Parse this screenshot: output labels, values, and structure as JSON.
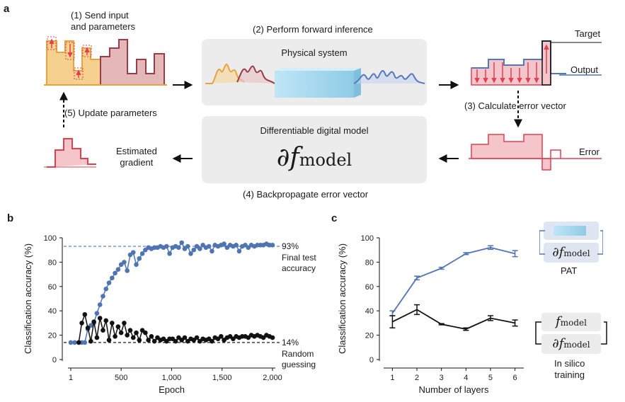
{
  "panel_a": {
    "label": "a",
    "step1": [
      "(1) Send input",
      "and parameters"
    ],
    "step2": "(2) Perform forward inference",
    "step3": "(3) Calculate error vector",
    "step4": "(4) Backpropagate error vector",
    "step5": "(5) Update parameters",
    "physical_system_title": "Physical system",
    "digital_model_title": "Differentiable digital model",
    "digital_model_symbol": "∂f",
    "digital_model_subscript": "model",
    "target_label": "Target",
    "output_label": "Output",
    "error_label": "Error",
    "estimated_gradient": [
      "Estimated",
      "gradient"
    ],
    "colors": {
      "input_orange": "#f0b65a",
      "param_red": "#a8505a",
      "target_red": "#e04050",
      "output_blue": "#5577bb",
      "box_gray": "#ececec",
      "beam_cyan": "#9fd6ee"
    }
  },
  "panel_b": {
    "label": "b",
    "annotations": {
      "final_pct": "93%",
      "final_text": [
        "Final test",
        "accuracy"
      ],
      "random_pct": "14%",
      "random_text": [
        "Random",
        "guessing"
      ]
    }
  },
  "panel_c": {
    "label": "c",
    "pat_label": "PAT",
    "insilico_label": [
      "In silico",
      "training"
    ],
    "fmodel_symbol": "f",
    "dfmodel_symbol": "∂f",
    "model_sub": "model"
  },
  "chart_data": [
    {
      "type": "scatter",
      "xlabel": "Epoch",
      "ylabel": "Classification accuracy (%)",
      "xlim": [
        1,
        2000
      ],
      "ylim": [
        0,
        100
      ],
      "xticks": [
        1,
        500,
        1000,
        1500,
        2000
      ],
      "xtick_labels": [
        "1",
        "500",
        "1,000",
        "1,500",
        "2,000"
      ],
      "yticks": [
        0,
        20,
        40,
        60,
        80,
        100
      ],
      "grid": false,
      "reference_lines": [
        {
          "y": 93,
          "style": "dashed",
          "color": "#4f74b2"
        },
        {
          "y": 14,
          "style": "dashed",
          "color": "#000000"
        }
      ],
      "series": [
        {
          "color": "#4f74b2",
          "x": [
            1,
            40,
            80,
            110,
            140,
            170,
            200,
            230,
            260,
            290,
            320,
            350,
            380,
            410,
            440,
            470,
            500,
            530,
            560,
            590,
            620,
            650,
            680,
            710,
            740,
            770,
            800,
            830,
            860,
            890,
            920,
            950,
            980,
            1010,
            1040,
            1070,
            1100,
            1130,
            1160,
            1190,
            1220,
            1250,
            1280,
            1310,
            1340,
            1370,
            1400,
            1430,
            1460,
            1490,
            1520,
            1550,
            1580,
            1610,
            1640,
            1670,
            1700,
            1730,
            1760,
            1790,
            1820,
            1850,
            1880,
            1910,
            1940,
            1970,
            2000
          ],
          "y": [
            14,
            14,
            14,
            14,
            14,
            25,
            28,
            30,
            38,
            45,
            52,
            58,
            63,
            67,
            71,
            74,
            78,
            80,
            73,
            86,
            88,
            78,
            83,
            87,
            90,
            92,
            91,
            92,
            92,
            93,
            92,
            93,
            87,
            92,
            93,
            92,
            96,
            91,
            93,
            87,
            90,
            93,
            91,
            94,
            92,
            93,
            89,
            94,
            93,
            94,
            95,
            92,
            94,
            93,
            94,
            89,
            93,
            94,
            92,
            94,
            93,
            94,
            94,
            94,
            95,
            94,
            94
          ]
        },
        {
          "color": "#111111",
          "x": [
            80,
            110,
            140,
            170,
            200,
            230,
            260,
            290,
            320,
            350,
            380,
            410,
            440,
            470,
            500,
            530,
            560,
            590,
            620,
            650,
            680,
            710,
            740,
            770,
            800,
            830,
            860,
            890,
            920,
            950,
            980,
            1010,
            1040,
            1070,
            1100,
            1130,
            1160,
            1190,
            1220,
            1250,
            1280,
            1310,
            1340,
            1370,
            1400,
            1430,
            1460,
            1490,
            1520,
            1550,
            1580,
            1610,
            1640,
            1670,
            1700,
            1730,
            1760,
            1790,
            1820,
            1850,
            1880,
            1910,
            1940,
            1970,
            2000
          ],
          "y": [
            14,
            30,
            37,
            26,
            15,
            31,
            18,
            34,
            24,
            32,
            16,
            30,
            19,
            27,
            22,
            30,
            20,
            24,
            18,
            22,
            16,
            24,
            22,
            16,
            19,
            15,
            18,
            16,
            17,
            15,
            17,
            17,
            15,
            18,
            16,
            18,
            15,
            17,
            16,
            18,
            15,
            17,
            16,
            17,
            15,
            18,
            17,
            19,
            16,
            18,
            19,
            17,
            19,
            18,
            19,
            19,
            18,
            20,
            19,
            20,
            19,
            18,
            20,
            19,
            18
          ]
        }
      ]
    },
    {
      "type": "line",
      "xlabel": "Number of layers",
      "ylabel": "Classification accuracy (%)",
      "xlim": [
        0.7,
        6.3
      ],
      "ylim": [
        0,
        100
      ],
      "xticks": [
        1,
        2,
        3,
        4,
        5,
        6
      ],
      "yticks": [
        0,
        20,
        40,
        60,
        80,
        100
      ],
      "grid": false,
      "series": [
        {
          "color": "#4f74b2",
          "x": [
            1,
            2,
            3,
            4,
            5,
            6
          ],
          "y": [
            38,
            67,
            75,
            87,
            92,
            87
          ],
          "err": [
            2,
            1.5,
            0.8,
            0.8,
            1.5,
            2.5
          ]
        },
        {
          "color": "#111111",
          "x": [
            1,
            2,
            3,
            4,
            5,
            6
          ],
          "y": [
            31,
            41,
            29,
            25,
            34,
            30
          ],
          "err": [
            5,
            4,
            0.5,
            1,
            2,
            2.5
          ]
        }
      ]
    }
  ]
}
